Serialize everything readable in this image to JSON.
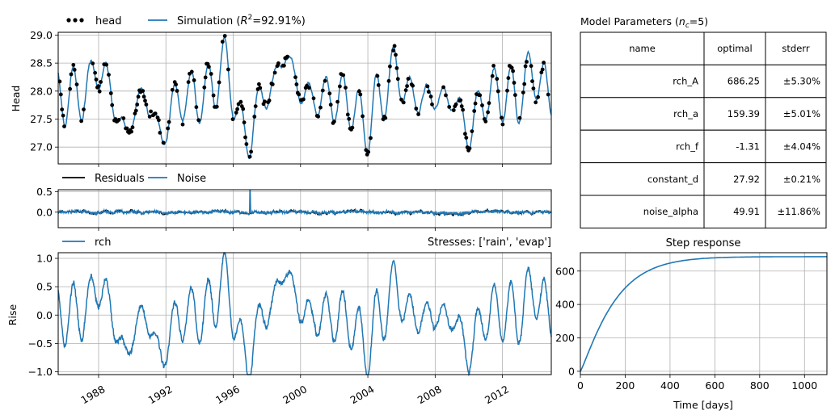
{
  "colors": {
    "simulation": "#1f77b4",
    "observed": "#000000",
    "residuals": "#000000",
    "noise": "#1f77b4",
    "grid": "#b0b0b0"
  },
  "chart_data": [
    {
      "type": "line",
      "panel": "head",
      "ylabel": "Head",
      "ylim": [
        26.7,
        29.05
      ],
      "yticks": [
        "27.0",
        "27.5",
        "28.0",
        "28.5",
        "29.0"
      ],
      "xlim": [
        1985.6,
        2014.9
      ],
      "grid": true,
      "legend_placement": "top-left",
      "series": [
        {
          "name": "head",
          "style": "markers"
        },
        {
          "name": "Simulation ($R^2$=92.91%)",
          "label_main": "Simulation (",
          "label_r": "R",
          "label_sup": "2",
          "label_rest": "=92.91%)",
          "style": "line"
        }
      ],
      "pattern": {
        "mean": 27.9,
        "seasonal_amplitude": 0.45,
        "peaks": [
          [
            1988.0,
            28.62
          ],
          [
            1995.4,
            28.7
          ],
          [
            1999.1,
            29.0
          ],
          [
            2005.6,
            28.6
          ],
          [
            2013.9,
            28.6
          ]
        ],
        "troughs": [
          [
            1989.6,
            26.85
          ],
          [
            1991.7,
            26.85
          ],
          [
            1996.8,
            26.75
          ],
          [
            2003.8,
            26.9
          ],
          [
            2010.0,
            27.0
          ]
        ]
      }
    },
    {
      "type": "line",
      "panel": "residuals",
      "ylim": [
        -0.38,
        0.55
      ],
      "yticks": [
        "0.0",
        "0.5"
      ],
      "xlim": [
        1985.6,
        2014.9
      ],
      "grid": true,
      "legend_placement": "top-left",
      "series": [
        {
          "name": "Residuals",
          "style": "line"
        },
        {
          "name": "Noise",
          "style": "line"
        }
      ],
      "pattern": {
        "spike_year": 1997.0,
        "spike_value": 0.53
      }
    },
    {
      "type": "line",
      "panel": "contribution",
      "ylabel": "Rise",
      "ylim": [
        -1.05,
        1.1
      ],
      "yticks": [
        "−1.0",
        "−0.5",
        "0.0",
        "0.5",
        "1.0"
      ],
      "xlim": [
        1985.6,
        2014.9
      ],
      "x_tick_labels": [
        "1988",
        "1992",
        "1996",
        "2000",
        "2004",
        "2008",
        "2012"
      ],
      "x_ticks": [
        1988,
        1992,
        1996,
        2000,
        2004,
        2008,
        2012
      ],
      "grid": true,
      "legend_placement": "top-left",
      "title_right": "Stresses: ['rain', 'evap']",
      "series": [
        {
          "name": "rch",
          "style": "line"
        }
      ],
      "pattern": {
        "mean": 0.0,
        "seasonal_amplitude": 0.55
      }
    },
    {
      "type": "line",
      "panel": "step-response",
      "title": "Step response",
      "xlabel": "Time [days]",
      "xlim": [
        0,
        1100
      ],
      "ylim": [
        -20,
        710
      ],
      "x_tick_labels": [
        "0",
        "200",
        "400",
        "600",
        "800",
        "1000"
      ],
      "x_ticks": [
        0,
        200,
        400,
        600,
        800,
        1000
      ],
      "y_tick_labels": [
        "0",
        "200",
        "400",
        "600"
      ],
      "y_ticks": [
        0,
        200,
        400,
        600
      ],
      "grid": true,
      "series": [
        {
          "name": "step",
          "gain": 686.25,
          "a": 159.39,
          "n": 1.15
        }
      ]
    },
    {
      "type": "table",
      "title_main": "Model Parameters (",
      "title_sub_var": "n",
      "title_sub": "c",
      "title_rest": "=5)",
      "columns": [
        "name",
        "optimal",
        "stderr"
      ],
      "rows": [
        [
          "rch_A",
          "686.25",
          "±5.30%"
        ],
        [
          "rch_a",
          "159.39",
          "±5.01%"
        ],
        [
          "rch_f",
          "-1.31",
          "±4.04%"
        ],
        [
          "constant_d",
          "27.92",
          "±0.21%"
        ],
        [
          "noise_alpha",
          "49.91",
          "±11.86%"
        ]
      ]
    }
  ]
}
